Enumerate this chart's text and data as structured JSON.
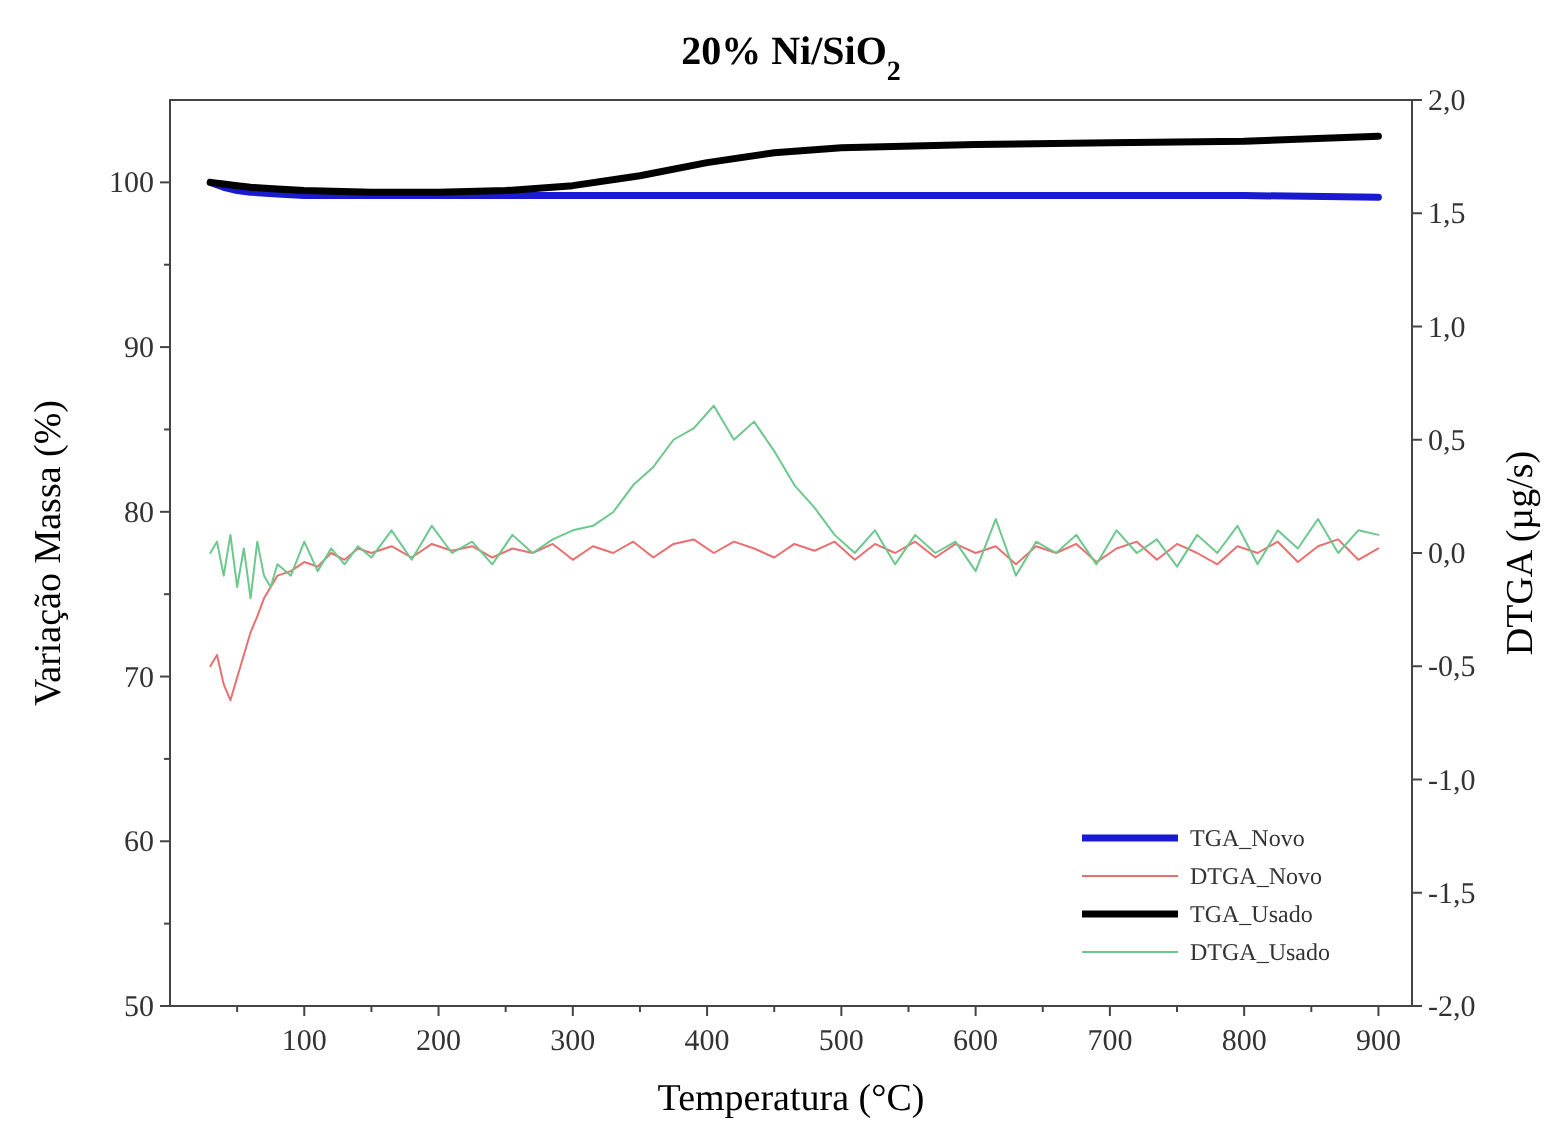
{
  "chart_data": {
    "type": "line",
    "title": "20% Ni/SiO$_{2}$",
    "xlabel": "Temperatura (°C)",
    "ylabel": "Variação Massa (%)",
    "y2label": "DTGA (µg/s)",
    "xlim": [
      0,
      925
    ],
    "xticks": [
      {
        "value": 50,
        "label": null
      },
      100,
      {
        "value": 150,
        "label": null
      },
      200,
      {
        "value": 250,
        "label": null
      },
      300,
      {
        "value": 350,
        "label": null
      },
      400,
      {
        "value": 450,
        "label": null
      },
      500,
      {
        "value": 550,
        "label": null
      },
      600,
      {
        "value": 650,
        "label": null
      },
      700,
      {
        "value": 750,
        "label": null
      },
      800,
      {
        "value": 850,
        "label": null
      },
      900
    ],
    "ylim": [
      50,
      105
    ],
    "yticks": [
      50,
      {
        "value": 55,
        "label": null
      },
      60,
      {
        "value": 65,
        "label": null
      },
      70,
      {
        "value": 75,
        "label": null
      },
      80,
      {
        "value": 85,
        "label": null
      },
      90,
      {
        "value": 95,
        "label": null
      },
      100
    ],
    "y2lim": [
      -2,
      2
    ],
    "y2ticks": [
      {
        "value": -2,
        "label": "-2,0"
      },
      {
        "value": -1.5,
        "label": "-1,5"
      },
      {
        "value": -1,
        "label": "-1,0"
      },
      {
        "value": -0.5,
        "label": "-0,5"
      },
      {
        "value": 0,
        "label": "0,0"
      },
      {
        "value": 0.5,
        "label": "0,5"
      },
      {
        "value": 1,
        "label": "1,0"
      },
      {
        "value": 1.5,
        "label": "1,5"
      },
      {
        "value": 2,
        "label": "2,0"
      }
    ],
    "grid": false,
    "legend": "bottom right",
    "marker": "none",
    "line_style": "solid",
    "series": [
      {
        "name": "TGA_Novo",
        "color": "#1a1ad0",
        "x": [
          30,
          40,
          50,
          60,
          80,
          100,
          150,
          200,
          250,
          300,
          350,
          400,
          450,
          500,
          600,
          700,
          800,
          900
        ],
        "values": [
          100,
          99.7,
          99.5,
          99.4,
          99.3,
          99.2,
          99.2,
          99.2,
          99.2,
          99.2,
          99.2,
          99.2,
          99.2,
          99.2,
          99.2,
          99.2,
          99.2,
          99.1
        ]
      },
      {
        "name": "DTGA_Novo",
        "color": "#e87070",
        "axis": "y2",
        "x": [
          30,
          35,
          40,
          45,
          50,
          55,
          60,
          65,
          70,
          75,
          80,
          90,
          100,
          110,
          120,
          130,
          140,
          150,
          165,
          180,
          195,
          210,
          225,
          240,
          255,
          270,
          285,
          300,
          315,
          330,
          345,
          360,
          375,
          390,
          405,
          420,
          435,
          450,
          465,
          480,
          495,
          510,
          525,
          540,
          555,
          570,
          585,
          600,
          615,
          630,
          645,
          660,
          675,
          690,
          705,
          720,
          735,
          750,
          765,
          780,
          795,
          810,
          825,
          840,
          855,
          870,
          885,
          900
        ],
        "values": [
          -0.5,
          -0.45,
          -0.58,
          -0.65,
          -0.55,
          -0.45,
          -0.35,
          -0.28,
          -0.2,
          -0.15,
          -0.1,
          -0.08,
          -0.04,
          -0.06,
          0.0,
          -0.03,
          0.02,
          0.0,
          0.03,
          -0.02,
          0.04,
          0.01,
          0.03,
          -0.02,
          0.02,
          0.0,
          0.04,
          -0.03,
          0.03,
          0.0,
          0.05,
          -0.02,
          0.04,
          0.06,
          0.0,
          0.05,
          0.02,
          -0.02,
          0.04,
          0.01,
          0.05,
          -0.03,
          0.04,
          0.0,
          0.05,
          -0.02,
          0.04,
          0.0,
          0.03,
          -0.05,
          0.03,
          0.0,
          0.04,
          -0.04,
          0.02,
          0.05,
          -0.03,
          0.04,
          0.0,
          -0.05,
          0.03,
          0.0,
          0.05,
          -0.04,
          0.03,
          0.06,
          -0.03,
          0.02
        ]
      },
      {
        "name": "TGA_Usado",
        "color": "#000000",
        "x": [
          30,
          40,
          50,
          60,
          80,
          100,
          150,
          200,
          250,
          300,
          350,
          400,
          450,
          500,
          600,
          700,
          800,
          900
        ],
        "values": [
          100,
          99.9,
          99.8,
          99.7,
          99.6,
          99.5,
          99.4,
          99.4,
          99.5,
          99.8,
          100.4,
          101.2,
          101.8,
          102.1,
          102.3,
          102.4,
          102.5,
          102.8
        ]
      },
      {
        "name": "DTGA_Usado",
        "color": "#6cc88c",
        "axis": "y2",
        "x": [
          30,
          35,
          40,
          45,
          50,
          55,
          60,
          65,
          70,
          75,
          80,
          90,
          100,
          110,
          120,
          130,
          140,
          150,
          165,
          180,
          195,
          210,
          225,
          240,
          255,
          270,
          285,
          300,
          315,
          330,
          345,
          360,
          375,
          390,
          405,
          420,
          435,
          450,
          465,
          480,
          495,
          510,
          525,
          540,
          555,
          570,
          585,
          600,
          615,
          630,
          645,
          660,
          675,
          690,
          705,
          720,
          735,
          750,
          765,
          780,
          795,
          810,
          825,
          840,
          855,
          870,
          885,
          900
        ],
        "values": [
          0.0,
          0.05,
          -0.1,
          0.08,
          -0.15,
          0.02,
          -0.2,
          0.05,
          -0.1,
          -0.15,
          -0.05,
          -0.1,
          0.05,
          -0.08,
          0.02,
          -0.05,
          0.03,
          -0.02,
          0.1,
          -0.03,
          0.12,
          0.0,
          0.05,
          -0.05,
          0.08,
          0.0,
          0.06,
          0.1,
          0.12,
          0.18,
          0.3,
          0.38,
          0.5,
          0.55,
          0.65,
          0.5,
          0.58,
          0.45,
          0.3,
          0.2,
          0.08,
          0.0,
          0.1,
          -0.05,
          0.08,
          0.0,
          0.05,
          -0.08,
          0.15,
          -0.1,
          0.05,
          0.0,
          0.08,
          -0.05,
          0.1,
          0.0,
          0.06,
          -0.06,
          0.08,
          0.0,
          0.12,
          -0.05,
          0.1,
          0.02,
          0.15,
          0.0,
          0.1,
          0.08
        ]
      }
    ]
  }
}
